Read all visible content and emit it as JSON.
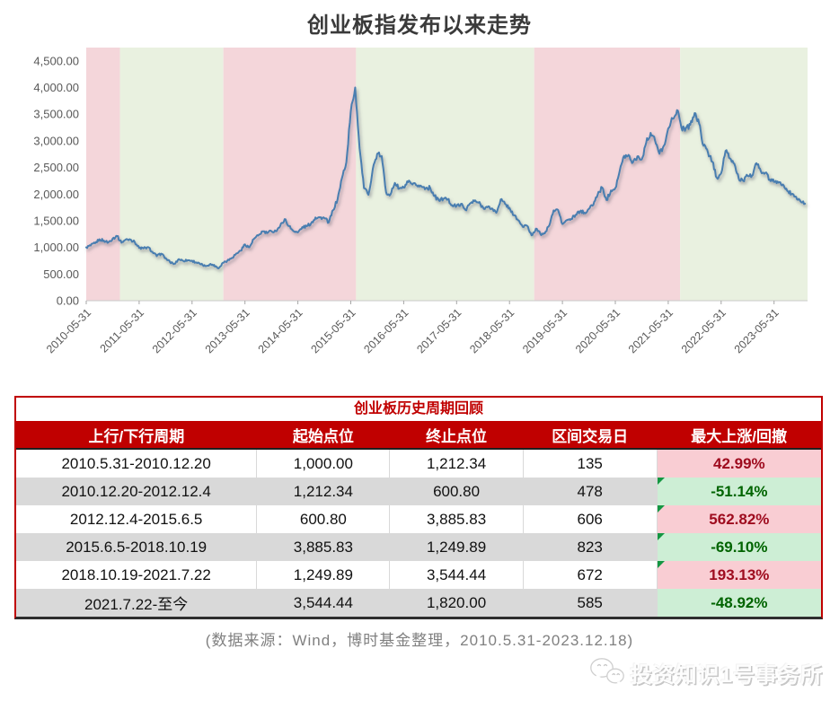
{
  "chart_data": {
    "type": "line",
    "title": "创业板指发布以来走势",
    "xlabel": "",
    "ylabel": "",
    "ylim": [
      0,
      4750
    ],
    "grid": false,
    "legend": "none",
    "y_ticks": [
      {
        "v": 0,
        "label": "0.00"
      },
      {
        "v": 500,
        "label": "500.00"
      },
      {
        "v": 1000,
        "label": "1,000.00"
      },
      {
        "v": 1500,
        "label": "1,500.00"
      },
      {
        "v": 2000,
        "label": "2,000.00"
      },
      {
        "v": 2500,
        "label": "2,500.00"
      },
      {
        "v": 3000,
        "label": "3,000.00"
      },
      {
        "v": 3500,
        "label": "3,500.00"
      },
      {
        "v": 4000,
        "label": "4,000.00"
      },
      {
        "v": 4500,
        "label": "4,500.00"
      }
    ],
    "x_ticks": [
      {
        "m": 0,
        "label": "2010-05-31"
      },
      {
        "m": 12,
        "label": "2011-05-31"
      },
      {
        "m": 24,
        "label": "2012-05-31"
      },
      {
        "m": 36,
        "label": "2013-05-31"
      },
      {
        "m": 48,
        "label": "2014-05-31"
      },
      {
        "m": 60,
        "label": "2015-05-31"
      },
      {
        "m": 72,
        "label": "2016-05-31"
      },
      {
        "m": 84,
        "label": "2017-05-31"
      },
      {
        "m": 96,
        "label": "2018-05-31"
      },
      {
        "m": 108,
        "label": "2019-05-31"
      },
      {
        "m": 120,
        "label": "2020-05-31"
      },
      {
        "m": 132,
        "label": "2021-05-31"
      },
      {
        "m": 144,
        "label": "2022-05-31"
      },
      {
        "m": 156,
        "label": "2023-05-31"
      }
    ],
    "x_span": 163.6,
    "x_start": "2010-05",
    "x_freq": "monthly",
    "bands": [
      {
        "from": 0,
        "to": 7.65,
        "dir": "up"
      },
      {
        "from": 7.65,
        "to": 31.1,
        "dir": "down"
      },
      {
        "from": 31.1,
        "to": 61.2,
        "dir": "up"
      },
      {
        "from": 61.2,
        "to": 101.6,
        "dir": "down"
      },
      {
        "from": 101.6,
        "to": 134.7,
        "dir": "up"
      },
      {
        "from": 134.7,
        "to": 163.6,
        "dir": "down"
      }
    ],
    "series": [
      {
        "name": "创业板指",
        "values": [
          1000,
          1035,
          1078,
          1152,
          1128,
          1092,
          1166,
          1212,
          1088,
          1150,
          1148,
          1098,
          990,
          982,
          1005,
          918,
          836,
          882,
          800,
          722,
          692,
          780,
          748,
          760,
          751,
          716,
          682,
          651,
          681,
          672,
          606,
          713,
          752,
          802,
          882,
          936,
          1056,
          1002,
          1156,
          1221,
          1302,
          1268,
          1306,
          1304,
          1404,
          1531,
          1400,
          1306,
          1281,
          1381,
          1398,
          1452,
          1561,
          1562,
          1551,
          1471,
          1702,
          1902,
          2302,
          2602,
          3552,
          4000,
          2862,
          2110,
          1987,
          2473,
          2755,
          2714,
          2037,
          1994,
          2210,
          2103,
          2122,
          2224,
          2180,
          2161,
          2150,
          2110,
          2121,
          1962,
          1880,
          1913,
          1900,
          1792,
          1775,
          1818,
          1704,
          1820,
          1867,
          1839,
          1752,
          1752,
          1732,
          1650,
          1900,
          1816,
          1742,
          1602,
          1508,
          1386,
          1406,
          1227,
          1353,
          1250,
          1263,
          1410,
          1695,
          1705,
          1438,
          1511,
          1534,
          1611,
          1674,
          1652,
          1722,
          1798,
          1993,
          2126,
          1888,
          2069,
          2114,
          2439,
          2718,
          2735,
          2596,
          2708,
          2649,
          2966,
          3149,
          3005,
          2758,
          2909,
          3232,
          3413,
          3576,
          3246,
          3232,
          3300,
          3521,
          3322,
          2908,
          2783,
          2608,
          2309,
          2392,
          2811,
          2670,
          2570,
          2289,
          2250,
          2345,
          2346,
          2580,
          2429,
          2399,
          2274,
          2229,
          2215,
          2182,
          2060,
          2003,
          1951,
          1866,
          1820
        ]
      }
    ],
    "colors": {
      "up_band": "#f4d6da",
      "down_band": "#e9f1e0",
      "line": "#4a7eb0",
      "axis_text": "#595959",
      "axis_line": "#c9c9c9",
      "tick": "#a6a6a6"
    }
  },
  "table": {
    "title": "创业板历史周期回顾",
    "headers": [
      "上行/下行周期",
      "起始点位",
      "终止点位",
      "区间交易日",
      "最大上涨/回撤"
    ],
    "rows": [
      {
        "period": "2010.5.31-2010.12.20",
        "start": "1,000.00",
        "end": "1,212.34",
        "days": "135",
        "change": "42.99%",
        "dir": "up",
        "marker": false
      },
      {
        "period": "2010.12.20-2012.12.4",
        "start": "1,212.34",
        "end": "600.80",
        "days": "478",
        "change": "-51.14%",
        "dir": "down",
        "marker": true
      },
      {
        "period": "2012.12.4-2015.6.5",
        "start": "600.80",
        "end": "3,885.83",
        "days": "606",
        "change": "562.82%",
        "dir": "up",
        "marker": true
      },
      {
        "period": "2015.6.5-2018.10.19",
        "start": "3,885.83",
        "end": "1,249.89",
        "days": "823",
        "change": "-69.10%",
        "dir": "down",
        "marker": true
      },
      {
        "period": "2018.10.19-2021.7.22",
        "start": "1,249.89",
        "end": "3,544.44",
        "days": "672",
        "change": "193.13%",
        "dir": "up",
        "marker": true
      },
      {
        "period": "2021.7.22-至今",
        "start": "3,544.44",
        "end": "1,820.00",
        "days": "585",
        "change": "-48.92%",
        "dir": "down",
        "marker": false
      }
    ],
    "colors": {
      "header_bg": "#c00000",
      "title_text": "#c00000",
      "row_alt": "#d9d9d9",
      "up_cell_bg": "#f9cdd3",
      "up_cell_text": "#9e0b1e",
      "down_cell_bg": "#cdeed5",
      "down_cell_text": "#006400"
    }
  },
  "footer": {
    "source": "(数据来源：Wind，博时基金整理，2010.5.31-2023.12.18)"
  },
  "watermark": {
    "text": "投资知识1号事务所",
    "icon": "wechat-icon"
  }
}
